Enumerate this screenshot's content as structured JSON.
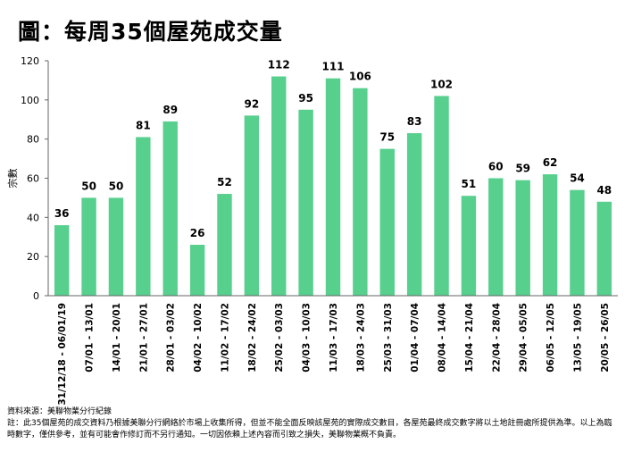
{
  "title": "圖：每周35個屋苑成交量",
  "source": {
    "line1": "資料來源：美聯物業分行紀錄",
    "note": "註：此35個屋苑的成交資料乃根據美聯分行網絡於市場上收集所得，但並不能全面反映該屋苑的實際成交數目，各屋苑最終成交數字將以土地註冊處所提供為準。以上為臨時數字，僅供參考，並有可能會作修訂而不另行通知。一切因依賴上述內容而引致之損失，美聯物業概不負責。"
  },
  "colors": {
    "bar": "#57cf8d",
    "axis": "#666666"
  },
  "chart_data": {
    "type": "bar",
    "title": "圖：每周35個屋苑成交量",
    "xlabel": "",
    "ylabel": "宗數",
    "ylim": [
      0,
      120
    ],
    "yticks": [
      0,
      20,
      40,
      60,
      80,
      100,
      120
    ],
    "categories": [
      "31/12/18 - 06/01/19",
      "07/01 - 13/01",
      "14/01 - 20/01",
      "21/01 - 27/01",
      "28/01 - 03/02",
      "04/02 - 10/02",
      "11/02 - 17/02",
      "18/02 - 24/02",
      "25/02 - 03/03",
      "04/03 - 10/03",
      "11/03 - 17/03",
      "18/03 - 24/03",
      "25/03 - 31/03",
      "01/04 - 07/04",
      "08/04 - 14/04",
      "15/04 - 21/04",
      "22/04 - 28/04",
      "29/04 - 05/05",
      "06/05 - 12/05",
      "13/05 - 19/05",
      "20/05 - 26/05"
    ],
    "values": [
      36,
      50,
      50,
      81,
      89,
      26,
      52,
      92,
      112,
      95,
      111,
      106,
      75,
      83,
      102,
      51,
      60,
      59,
      62,
      54,
      48
    ],
    "grid": false,
    "legend": "none"
  }
}
